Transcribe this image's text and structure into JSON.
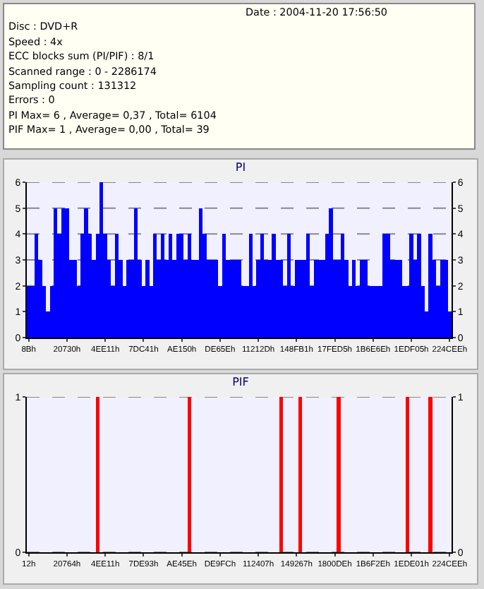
{
  "chart_data": [
    {
      "type": "other",
      "annotations": [
        "Date : 2004-11-20 17:56:50",
        "Disc : DVD+R",
        "Speed : 4x",
        "ECC blocks sum (PI/PIF) : 8/1",
        "Scanned range : 0 - 2286174",
        "Sampling count : 131312",
        "Errors : 0",
        "PI Max= 6 , Average= 0,37 , Total= 6104",
        "PIF Max= 1 , Average= 0,00 , Total= 39"
      ]
    },
    {
      "type": "bar",
      "title": "PI",
      "categories": [
        "8Bh",
        null,
        null,
        null,
        null,
        null,
        null,
        null,
        null,
        null,
        "20730h",
        null,
        null,
        null,
        null,
        null,
        null,
        null,
        null,
        null,
        "4EE11h",
        null,
        null,
        null,
        null,
        null,
        null,
        null,
        null,
        null,
        "7DC41h",
        null,
        null,
        null,
        null,
        null,
        null,
        null,
        null,
        null,
        "AE150h",
        null,
        null,
        null,
        null,
        null,
        null,
        null,
        null,
        null,
        "DE65Eh",
        null,
        null,
        null,
        null,
        null,
        null,
        null,
        null,
        null,
        "11212Dh",
        null,
        null,
        null,
        null,
        null,
        null,
        null,
        null,
        null,
        "148FB1h",
        null,
        null,
        null,
        null,
        null,
        null,
        null,
        null,
        null,
        "17FED5h",
        null,
        null,
        null,
        null,
        null,
        null,
        null,
        null,
        null,
        "1B6E6Eh",
        null,
        null,
        null,
        null,
        null,
        null,
        null,
        null,
        null,
        "1EDF05h",
        null,
        null,
        null,
        null,
        null,
        null,
        null,
        null,
        null,
        "224CEEh"
      ],
      "series": [
        {
          "color": "#0000ff",
          "values": [
            2,
            2,
            4,
            3,
            2,
            1,
            2,
            5,
            4,
            5,
            5,
            3,
            3,
            2,
            4,
            5,
            4,
            3,
            4,
            6,
            4,
            3,
            2,
            4,
            3,
            2,
            3,
            3,
            5,
            3,
            2,
            3,
            2,
            4,
            3,
            4,
            3,
            4,
            3,
            4,
            4,
            3,
            4,
            3,
            3,
            5,
            4,
            3,
            3,
            3,
            2,
            4,
            3,
            3,
            3,
            3,
            2,
            2,
            4,
            2,
            3,
            4,
            3,
            3,
            4,
            3,
            3,
            2,
            4,
            2,
            3,
            3,
            3,
            4,
            2,
            3,
            3,
            3,
            4,
            5,
            3,
            3,
            4,
            3,
            2,
            3,
            2,
            3,
            3,
            2,
            2,
            2,
            2,
            4,
            4,
            3,
            3,
            3,
            2,
            2,
            4,
            3,
            4,
            2,
            1,
            4,
            3,
            2,
            3,
            3,
            1
          ]
        }
      ],
      "ylim": [
        0,
        6
      ],
      "yticks": [
        0,
        1,
        2,
        3,
        4,
        5,
        6
      ],
      "y2lim": [
        0,
        6
      ],
      "y2ticks": [
        0,
        1,
        2,
        3,
        4,
        5,
        6
      ],
      "grid": "y"
    },
    {
      "type": "bar",
      "title": "PIF",
      "categories": [
        "12h",
        null,
        null,
        null,
        null,
        null,
        null,
        null,
        null,
        null,
        "20764h",
        null,
        null,
        null,
        null,
        null,
        null,
        null,
        null,
        null,
        "4EE11h",
        null,
        null,
        null,
        null,
        null,
        null,
        null,
        null,
        null,
        "7DE93h",
        null,
        null,
        null,
        null,
        null,
        null,
        null,
        null,
        null,
        "AE45Eh",
        null,
        null,
        null,
        null,
        null,
        null,
        null,
        null,
        null,
        "DE9FCh",
        null,
        null,
        null,
        null,
        null,
        null,
        null,
        null,
        null,
        "112407h",
        null,
        null,
        null,
        null,
        null,
        null,
        null,
        null,
        null,
        "149267h",
        null,
        null,
        null,
        null,
        null,
        null,
        null,
        null,
        null,
        "1800DEh",
        null,
        null,
        null,
        null,
        null,
        null,
        null,
        null,
        null,
        "1B6F2Eh",
        null,
        null,
        null,
        null,
        null,
        null,
        null,
        null,
        null,
        "1EDE01h",
        null,
        null,
        null,
        null,
        null,
        null,
        null,
        null,
        null,
        "224CEEh"
      ],
      "series": [
        {
          "color": "#ff0000",
          "values": [
            0,
            0,
            0,
            0,
            0,
            0,
            0,
            0,
            0,
            0,
            0,
            0,
            0,
            0,
            0,
            0,
            0,
            0,
            1,
            0,
            0,
            0,
            0,
            0,
            0,
            0,
            0,
            0,
            0,
            0,
            0,
            0,
            0,
            0,
            0,
            0,
            0,
            0,
            0,
            0,
            0,
            0,
            1,
            0,
            0,
            0,
            0,
            0,
            0,
            0,
            0,
            0,
            0,
            0,
            0,
            0,
            0,
            0,
            0,
            0,
            0,
            0,
            0,
            0,
            0,
            0,
            1,
            0,
            0,
            0,
            0,
            1,
            0,
            0,
            0,
            0,
            0,
            0,
            0,
            0,
            0,
            1,
            0,
            0,
            0,
            0,
            0,
            0,
            0,
            0,
            0,
            0,
            0,
            0,
            0,
            0,
            0,
            0,
            0,
            1,
            0,
            0,
            0,
            0,
            0,
            1,
            0,
            0,
            0,
            0,
            0
          ]
        }
      ],
      "ylim": [
        0,
        1
      ],
      "yticks": [
        0,
        1
      ],
      "y2lim": [
        0,
        1
      ],
      "y2ticks": [
        0,
        1
      ],
      "grid": "y"
    }
  ]
}
